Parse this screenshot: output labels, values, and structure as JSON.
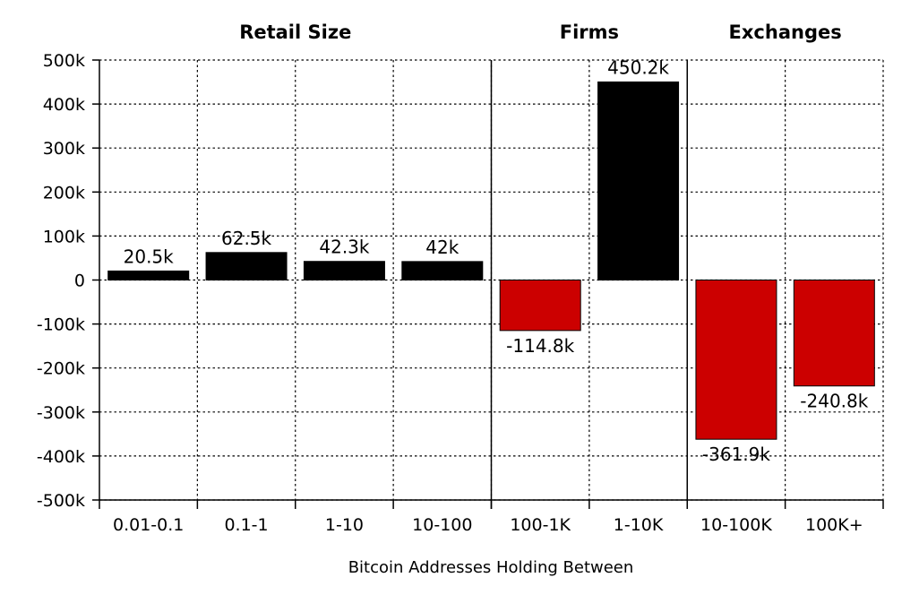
{
  "chart_data": {
    "type": "bar",
    "title": "",
    "xlabel": "Bitcoin Addresses Holding Between",
    "ylabel": "",
    "ylim": [
      -500000,
      500000
    ],
    "yticks": [
      500000,
      400000,
      300000,
      200000,
      100000,
      0,
      -100000,
      -200000,
      -300000,
      -400000,
      -500000
    ],
    "ytick_labels": [
      "500k",
      "400k",
      "300k",
      "200k",
      "100k",
      "0",
      "-100k",
      "-200k",
      "-300k",
      "-400k",
      "-500k"
    ],
    "grid": true,
    "categories": [
      "0.01-0.1",
      "0.1-1",
      "1-10",
      "10-100",
      "100-1K",
      "1-10K",
      "10-100K",
      "100K+"
    ],
    "values": [
      20500,
      62500,
      42300,
      42000,
      -114800,
      450200,
      -361900,
      -240800
    ],
    "data_labels": [
      "20.5k",
      "62.5k",
      "42.3k",
      "42k",
      "-114.8k",
      "450.2k",
      "-361.9k",
      "-240.8k"
    ],
    "groups": [
      {
        "label": "Retail Size",
        "categories": [
          "0.01-0.1",
          "0.1-1",
          "1-10",
          "10-100"
        ]
      },
      {
        "label": "Firms",
        "categories": [
          "100-1K",
          "1-10K"
        ]
      },
      {
        "label": "Exchanges",
        "categories": [
          "10-100K",
          "100K+"
        ]
      }
    ],
    "colors": {
      "positive": "#000000",
      "negative": "#cc0000"
    }
  }
}
